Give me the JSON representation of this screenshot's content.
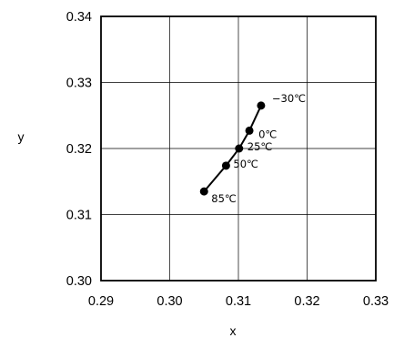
{
  "chart_data": {
    "type": "scatter",
    "title": "",
    "xlabel": "x",
    "ylabel": "y",
    "xlim": [
      0.29,
      0.33
    ],
    "ylim": [
      0.3,
      0.34
    ],
    "xticks": [
      "0.29",
      "0.30",
      "0.31",
      "0.32",
      "0.33"
    ],
    "yticks": [
      "0.30",
      "0.31",
      "0.32",
      "0.33",
      "0.34"
    ],
    "grid": true,
    "series": [
      {
        "points": [
          {
            "x": 0.3133,
            "y": 0.3265,
            "label": "−30℃"
          },
          {
            "x": 0.3116,
            "y": 0.3227,
            "label": "0℃"
          },
          {
            "x": 0.3101,
            "y": 0.32,
            "label": "25℃"
          },
          {
            "x": 0.3082,
            "y": 0.3174,
            "label": "50℃"
          },
          {
            "x": 0.305,
            "y": 0.3135,
            "label": "85℃"
          }
        ]
      }
    ]
  }
}
